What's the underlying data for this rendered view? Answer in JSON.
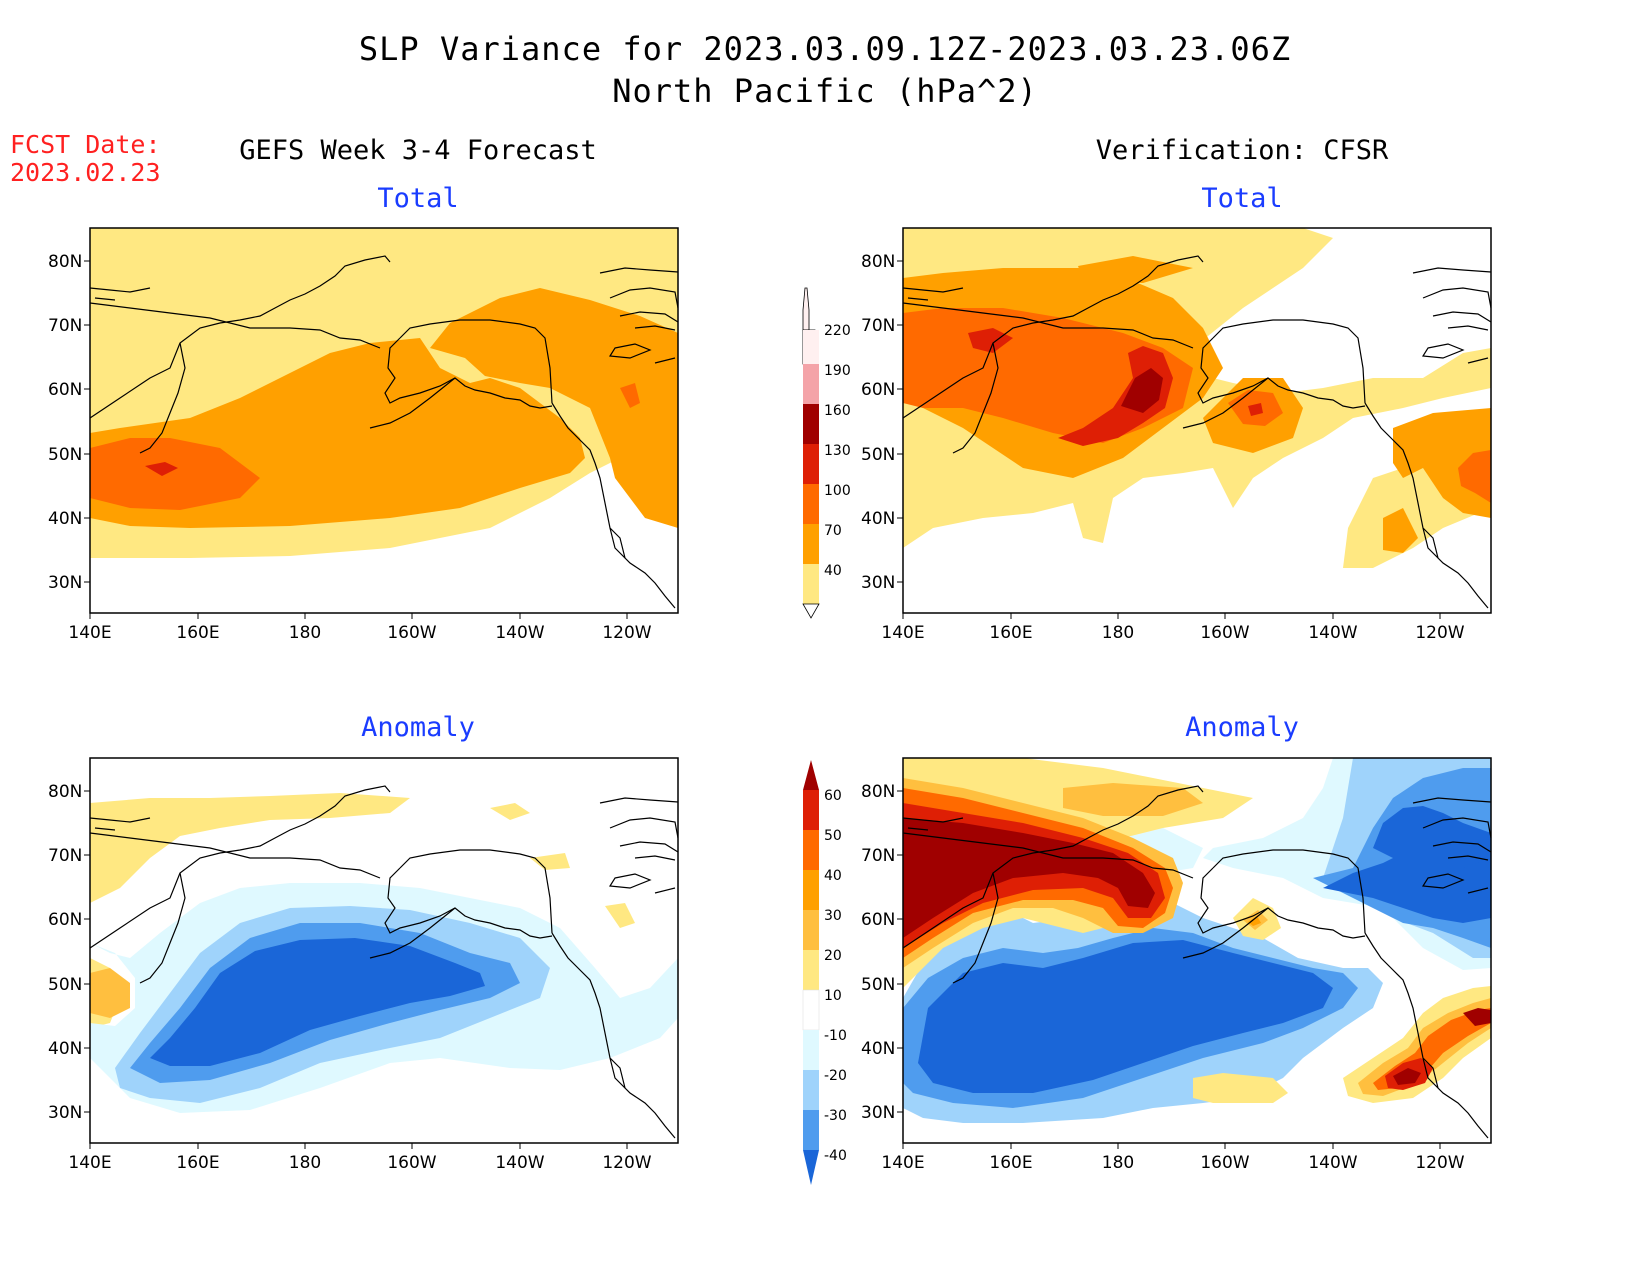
{
  "header": {
    "title_line1": "SLP Variance for 2023.03.09.12Z-2023.03.23.06Z",
    "title_line2": "North Pacific (hPa^2)",
    "fcst_label": "FCST Date:",
    "fcst_date": "2023.02.23"
  },
  "columns": {
    "left_title": "GEFS Week 3-4 Forecast",
    "right_title": "Verification: CFSR"
  },
  "panels": [
    {
      "id": "gefs-total",
      "subtitle": "Total"
    },
    {
      "id": "cfsr-total",
      "subtitle": "Total"
    },
    {
      "id": "gefs-anomaly",
      "subtitle": "Anomaly"
    },
    {
      "id": "cfsr-anomaly",
      "subtitle": "Anomaly"
    }
  ],
  "axes": {
    "lat_ticks": [
      "80N",
      "70N",
      "60N",
      "50N",
      "40N",
      "30N"
    ],
    "lon_ticks": [
      "140E",
      "160E",
      "180",
      "160W",
      "140W",
      "120W"
    ],
    "lat_range": [
      25,
      85
    ],
    "lon_range": [
      "140E",
      "110W"
    ]
  },
  "total_colorbar": {
    "labels": [
      "220",
      "190",
      "160",
      "130",
      "100",
      "70",
      "40"
    ],
    "colors": [
      "#fff0f0",
      "#f4a3a8",
      "#a00000",
      "#de1f05",
      "#ff6a00",
      "#ffa000",
      "#ffe882"
    ]
  },
  "anomaly_colorbar": {
    "labels": [
      "60",
      "50",
      "40",
      "30",
      "20",
      "10",
      "-10",
      "-20",
      "-30",
      "-40"
    ],
    "colors": [
      "#a00000",
      "#de1f05",
      "#ff6a00",
      "#ffa000",
      "#ffbf3f",
      "#ffe882",
      "#ffffff",
      "#dff9ff",
      "#9fd3fb",
      "#4f9cee",
      "#1a66d8"
    ]
  }
}
